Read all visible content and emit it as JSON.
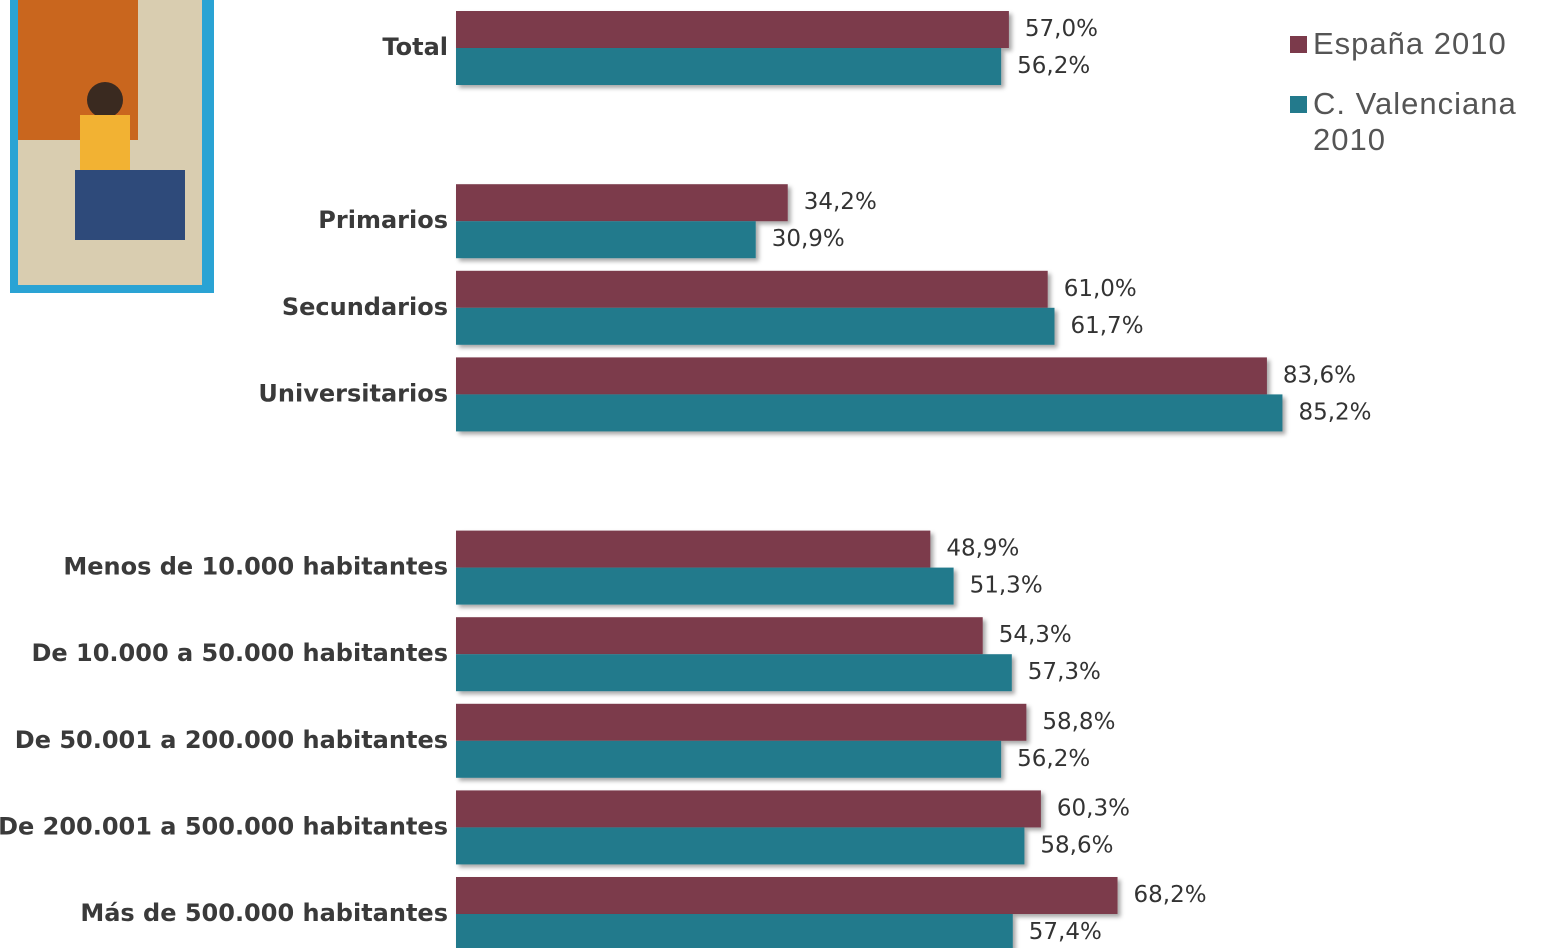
{
  "chart_data": {
    "type": "barh",
    "categories": [
      "Total",
      null,
      "Primarios",
      "Secundarios",
      "Universitarios",
      null,
      "Menos de 10.000 habitantes",
      "De 10.000 a 50.000 habitantes",
      "De 50.001 a 200.000 habitantes",
      "De 200.001 a 500.000 habitantes",
      "Más de 500.000 habitantes"
    ],
    "series": [
      {
        "name": "España 2010",
        "color": "#7b3a4b",
        "values": [
          57.0,
          null,
          34.2,
          61.0,
          83.6,
          null,
          48.9,
          54.3,
          58.8,
          60.3,
          68.2
        ],
        "value_labels": [
          "57,0%",
          null,
          "34,2%",
          "61,0%",
          "83,6%",
          null,
          "48,9%",
          "54,3%",
          "58,8%",
          "60,3%",
          "68,2%"
        ]
      },
      {
        "name": "C. Valenciana 2010",
        "color": "#237a8c",
        "values": [
          56.2,
          null,
          30.9,
          61.7,
          85.2,
          null,
          51.3,
          57.3,
          56.2,
          58.6,
          57.4
        ],
        "value_labels": [
          "56,2%",
          null,
          "30,9%",
          "61,7%",
          "85,2%",
          null,
          "51,3%",
          "57,3%",
          "56,2%",
          "58,6%",
          "57,4%"
        ]
      }
    ],
    "legend": "top-right"
  }
}
